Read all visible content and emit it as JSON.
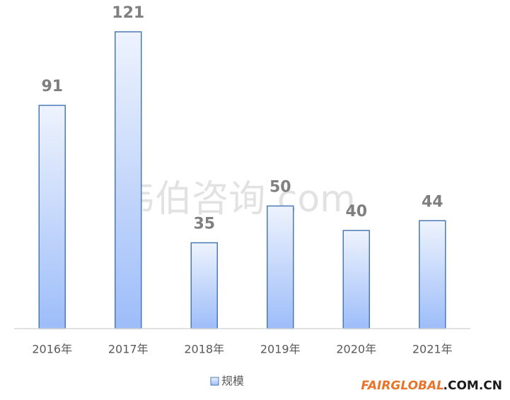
{
  "chart_data": {
    "type": "bar",
    "categories": [
      "2016年",
      "2017年",
      "2018年",
      "2019年",
      "2020年",
      "2021年"
    ],
    "series": [
      {
        "name": "规模",
        "color": "#9dbdf9",
        "values": [
          91,
          121,
          35,
          50,
          40,
          44
        ]
      }
    ],
    "data_labels": true
  },
  "watermark": "韦伯咨询.com",
  "logo": {
    "brand": "FAIRGLOBAL",
    "suffix": ".COM.CN"
  }
}
